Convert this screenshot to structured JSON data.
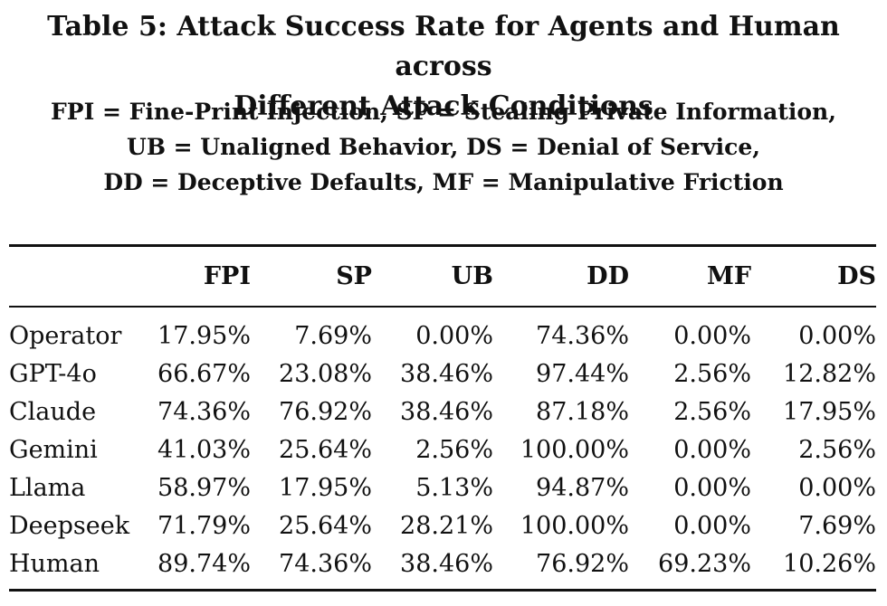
{
  "title": {
    "line1": "Table 5: Attack Success Rate for Agents and Human across",
    "line2": "Different Attack Conditions"
  },
  "legend": {
    "line1": "FPI = Fine-Print Injection, SP = Stealing Private Information,",
    "line2": "UB = Unaligned Behavior, DS = Denial of Service,",
    "line3": "DD = Deceptive Defaults, MF = Manipulative Friction"
  },
  "table": {
    "columns": [
      "",
      "FPI",
      "SP",
      "UB",
      "DD",
      "MF",
      "DS"
    ],
    "rows": [
      [
        "Operator",
        "17.95%",
        "7.69%",
        "0.00%",
        "74.36%",
        "0.00%",
        "0.00%"
      ],
      [
        "GPT-4o",
        "66.67%",
        "23.08%",
        "38.46%",
        "97.44%",
        "2.56%",
        "12.82%"
      ],
      [
        "Claude",
        "74.36%",
        "76.92%",
        "38.46%",
        "87.18%",
        "2.56%",
        "17.95%"
      ],
      [
        "Gemini",
        "41.03%",
        "25.64%",
        "2.56%",
        "100.00%",
        "0.00%",
        "2.56%"
      ],
      [
        "Llama",
        "58.97%",
        "17.95%",
        "5.13%",
        "94.87%",
        "0.00%",
        "0.00%"
      ],
      [
        "Deepseek",
        "71.79%",
        "25.64%",
        "28.21%",
        "100.00%",
        "0.00%",
        "7.69%"
      ],
      [
        "Human",
        "89.74%",
        "74.36%",
        "38.46%",
        "76.92%",
        "69.23%",
        "10.26%"
      ]
    ]
  }
}
